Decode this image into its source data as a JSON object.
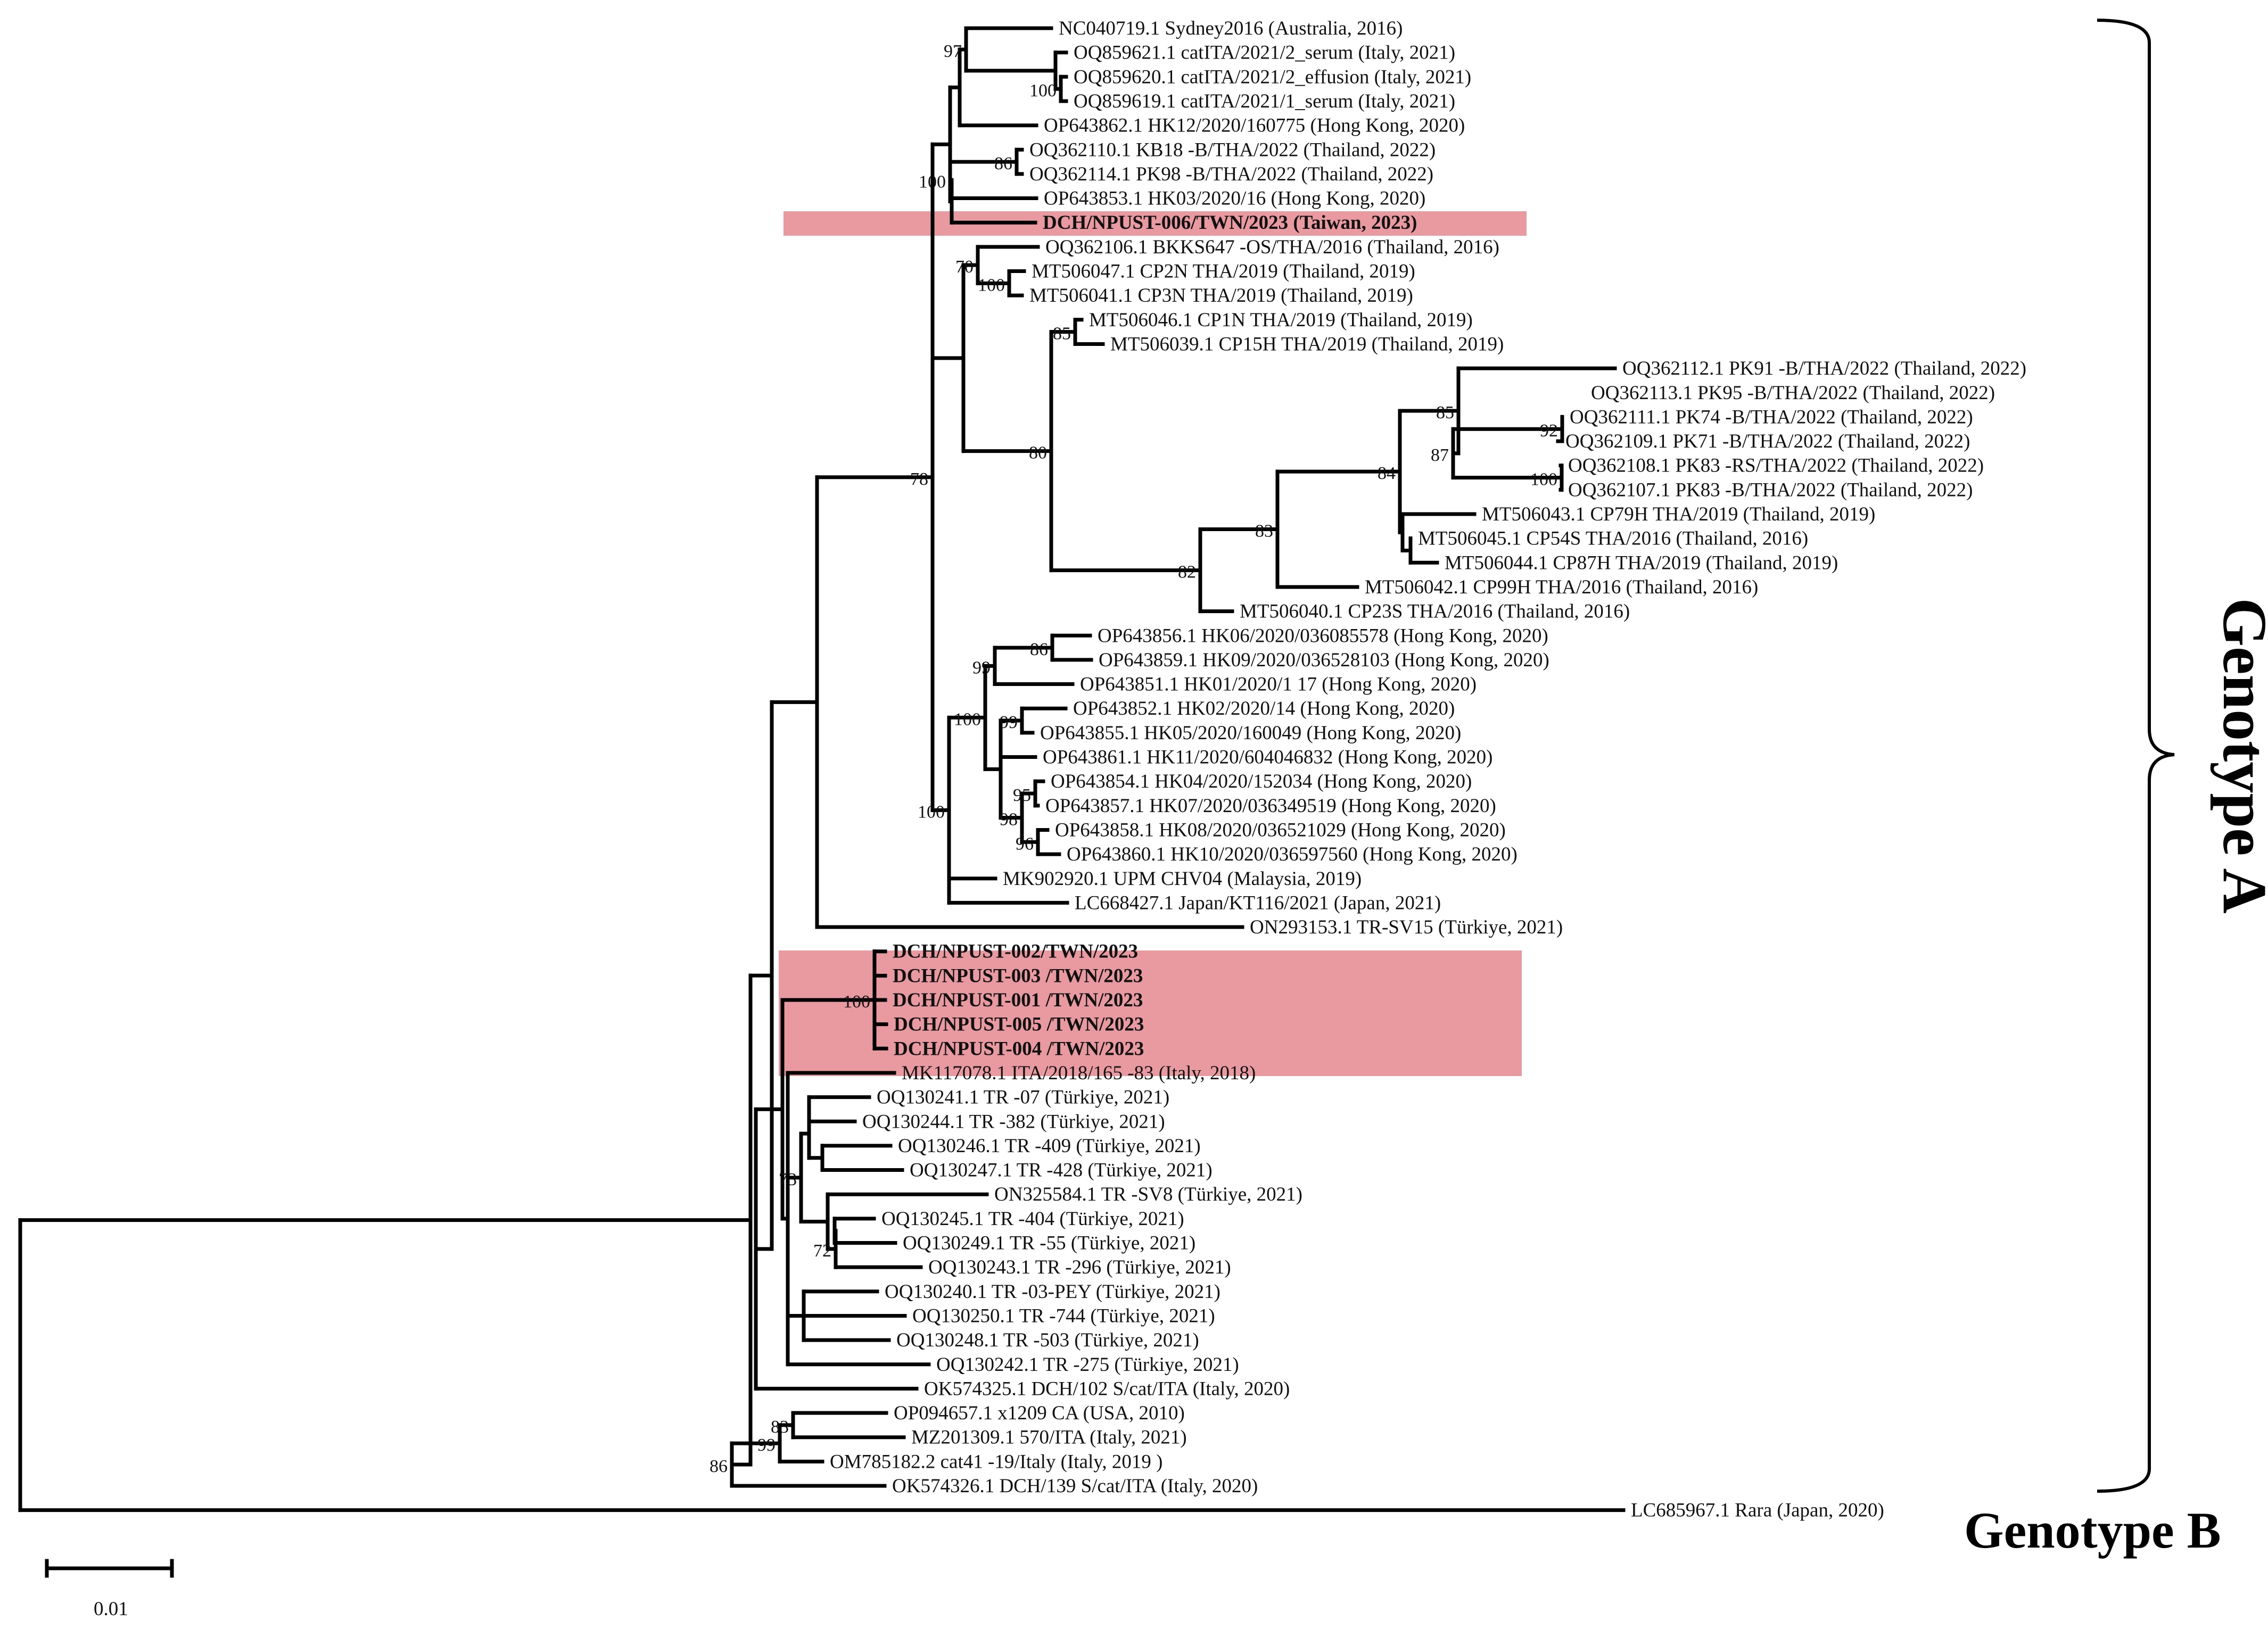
{
  "highlight_color": "#e8959b",
  "scale_bar": {
    "label": "0.01"
  },
  "genotype_a_label": "Genotype A",
  "genotype_b_label": "Genotype B",
  "leaves": [
    "NC040719.1  Sydney2016 (Australia, 2016)",
    "OQ859621.1  catITA/2021/2_serum (Italy, 2021)",
    "OQ859620.1  catITA/2021/2_effusion (Italy, 2021)",
    "OQ859619.1  catITA/2021/1_serum (Italy, 2021)",
    "OP643862.1 HK12/2020/160775 (Hong Kong, 2020)",
    "OQ362110.1 KB18  -B/THA/2022 (Thailand, 2022)",
    "OQ362114.1 PK98  -B/THA/2022 (Thailand, 2022)",
    "OP643853.1 HK03/2020/16 (Hong Kong, 2020)",
    "DCH/NPUST-006/TWN/2023 (Taiwan, 2023)",
    "OQ362106.1 BKKS647  -OS/THA/2016 (Thailand, 2016)",
    "MT506047.1 CP2N THA/2019 (Thailand, 2019)",
    "MT506041.1 CP3N THA/2019 (Thailand, 2019)",
    "MT506046.1 CP1N THA/2019 (Thailand, 2019)",
    "MT506039.1 CP15H THA/2019 (Thailand, 2019)",
    "OQ362112.1 PK91   -B/THA/2022 (Thailand, 2022)",
    "OQ362113.1 PK95  -B/THA/2022 (Thailand, 2022)",
    "OQ362111.1 PK74  -B/THA/2022 (Thailand, 2022)",
    "OQ362109.1 PK71  -B/THA/2022 (Thailand, 2022)",
    "OQ362108.1 PK83  -RS/THA/2022 (Thailand, 2022)",
    "OQ362107.1 PK83  -B/THA/2022 (Thailand, 2022)",
    "MT506043.1 CP79H THA/2019 (Thailand, 2019)",
    "MT506045.1 CP54S THA/2016 (Thailand, 2016)",
    "MT506044.1 CP87H THA/2019 (Thailand, 2019)",
    "MT506042.1 CP99H THA/2016 (Thailand, 2016)",
    "MT506040.1 CP23S THA/2016 (Thailand, 2016)",
    "OP643856.1 HK06/2020/036085578 (Hong Kong, 2020)",
    "OP643859.1 HK09/2020/036528103 (Hong Kong, 2020)",
    "OP643851.1 HK01/2020/1 17 (Hong Kong, 2020)",
    "OP643852.1 HK02/2020/14 (Hong Kong, 2020)",
    "OP643855.1 HK05/2020/160049 (Hong Kong, 2020)",
    "OP643861.1 HK11/2020/604046832 (Hong Kong, 2020)",
    "OP643854.1 HK04/2020/152034 (Hong Kong, 2020)",
    "OP643857.1 HK07/2020/036349519 (Hong Kong, 2020)",
    "OP643858.1 HK08/2020/036521029 (Hong Kong, 2020)",
    "OP643860.1 HK10/2020/036597560 (Hong Kong, 2020)",
    "MK902920.1 UPM CHV04 (Malaysia, 2019)",
    "LC668427.1 Japan/KT116/2021 (Japan, 2021)",
    "ON293153.1  TR-SV15  (Türkiye, 2021)",
    "DCH/NPUST-002/TWN/2023",
    "DCH/NPUST-003 /TWN/2023",
    "DCH/NPUST-001 /TWN/2023",
    "DCH/NPUST-005 /TWN/2023",
    "DCH/NPUST-004 /TWN/2023",
    "MK117078.1 ITA/2018/165 -83 (Italy, 2018)",
    "OQ130241.1 TR  -07  (Türkiye, 2021)",
    "OQ130244.1 TR  -382  (Türkiye, 2021)",
    "OQ130246.1 TR  -409  (Türkiye, 2021)",
    "OQ130247.1 TR  -428  (Türkiye, 2021)",
    "ON325584.1 TR  -SV8  (Türkiye, 2021)",
    "OQ130245.1 TR  -404  (Türkiye, 2021)",
    "OQ130249.1 TR  -55  (Türkiye, 2021)",
    "OQ130243.1 TR  -296  (Türkiye, 2021)",
    "OQ130240.1 TR  -03-PEY  (Türkiye, 2021)",
    "OQ130250.1 TR  -744  (Türkiye, 2021)",
    "OQ130248.1 TR  -503  (Türkiye, 2021)",
    "OQ130242.1 TR  -275  (Türkiye, 2021)",
    "OK574325.1 DCH/102 S/cat/ITA (Italy, 2020)",
    "OP094657.1 x1209 CA (USA, 2010)",
    "MZ201309.1 570/ITA (Italy, 2021)",
    "OM785182.2 cat41  -19/Italy (Italy, 2019 )",
    "OK574326.1 DCH/139 S/cat/ITA (Italy, 2020)",
    "LC685967.1 Rara (Japan, 2020)"
  ],
  "bootstrap": [
    "97",
    "100",
    "86",
    "100",
    "70",
    "100",
    "85",
    "85",
    "92",
    "87",
    "100",
    "100",
    "84",
    "83",
    "82",
    "80",
    "78",
    "100",
    "86",
    "99",
    "99",
    "98",
    "95",
    "96",
    "100",
    "100",
    "73",
    "72",
    "83",
    "99",
    "86"
  ]
}
